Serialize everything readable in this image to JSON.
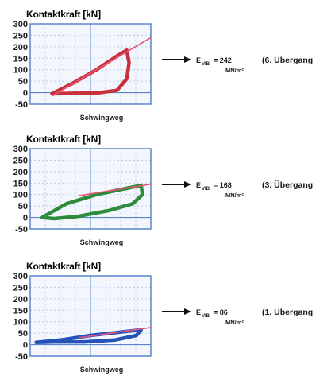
{
  "chart_data": [
    {
      "type": "line",
      "ylabel": "Kontaktkraft [kN]",
      "xlabel": "Schwingweg",
      "yticks": [
        "300",
        "250",
        "200",
        "150",
        "100",
        "50",
        "0",
        "-50"
      ],
      "ylim": [
        -50,
        300
      ],
      "grid": true,
      "loop_color": "#c8303a",
      "line_color": "#e8557a",
      "frame_color": "#5a86c8",
      "grid_color": "#b8ccec",
      "result": {
        "label": "E",
        "sub": "VIB",
        "value": "= 242",
        "unit": "MN/m²",
        "transition": "(6. Übergang"
      },
      "series": [
        {
          "type": "hysteresis-loop",
          "loading": [
            [
              0.18,
              -5
            ],
            [
              0.35,
              40
            ],
            [
              0.55,
              100
            ],
            [
              0.72,
              160
            ],
            [
              0.8,
              185
            ]
          ],
          "unloading": [
            [
              0.8,
              185
            ],
            [
              0.82,
              130
            ],
            [
              0.8,
              60
            ],
            [
              0.72,
              10
            ],
            [
              0.55,
              -2
            ],
            [
              0.35,
              -3
            ],
            [
              0.18,
              -5
            ]
          ]
        },
        {
          "type": "secant-line",
          "points": [
            [
              0.18,
              -15
            ],
            [
              1.0,
              240
            ]
          ]
        }
      ]
    },
    {
      "type": "line",
      "ylabel": "Kontaktkraft [kN]",
      "xlabel": "Schwingweg",
      "yticks": [
        "300",
        "250",
        "200",
        "150",
        "100",
        "50",
        "0",
        "-50"
      ],
      "ylim": [
        -50,
        300
      ],
      "grid": true,
      "loop_color": "#2e8b3a",
      "line_color": "#e8557a",
      "frame_color": "#5a86c8",
      "grid_color": "#b8ccec",
      "result": {
        "label": "E",
        "sub": "VIB",
        "value": "= 168",
        "unit": "MN/m²",
        "transition": "(3. Übergang"
      },
      "series": [
        {
          "type": "hysteresis-loop",
          "loading": [
            [
              0.1,
              0
            ],
            [
              0.3,
              60
            ],
            [
              0.55,
              100
            ],
            [
              0.78,
              125
            ],
            [
              0.92,
              140
            ]
          ],
          "unloading": [
            [
              0.92,
              140
            ],
            [
              0.93,
              100
            ],
            [
              0.85,
              60
            ],
            [
              0.65,
              30
            ],
            [
              0.4,
              5
            ],
            [
              0.2,
              -5
            ],
            [
              0.1,
              0
            ]
          ]
        },
        {
          "type": "secant-line",
          "points": [
            [
              0.4,
              95
            ],
            [
              1.0,
              145
            ]
          ]
        }
      ]
    },
    {
      "type": "line",
      "ylabel": "Kontaktkraft [kN]",
      "xlabel": "Schwingweg",
      "yticks": [
        "300",
        "250",
        "200",
        "150",
        "100",
        "50",
        "0",
        "-50"
      ],
      "ylim": [
        -50,
        300
      ],
      "grid": true,
      "loop_color": "#2452b8",
      "line_color": "#e8557a",
      "frame_color": "#5a86c8",
      "grid_color": "#b8ccec",
      "result": {
        "label": "E",
        "sub": "VIB",
        "value": "= 86",
        "unit": "MN/m²",
        "transition": "(1. Übergang"
      },
      "series": [
        {
          "type": "hysteresis-loop",
          "loading": [
            [
              0.05,
              10
            ],
            [
              0.25,
              20
            ],
            [
              0.5,
              40
            ],
            [
              0.75,
              55
            ],
            [
              0.92,
              65
            ]
          ],
          "unloading": [
            [
              0.92,
              65
            ],
            [
              0.88,
              40
            ],
            [
              0.7,
              20
            ],
            [
              0.45,
              12
            ],
            [
              0.2,
              12
            ],
            [
              0.05,
              10
            ]
          ]
        },
        {
          "type": "secant-line",
          "points": [
            [
              0.4,
              30
            ],
            [
              1.0,
              75
            ]
          ]
        }
      ]
    }
  ]
}
